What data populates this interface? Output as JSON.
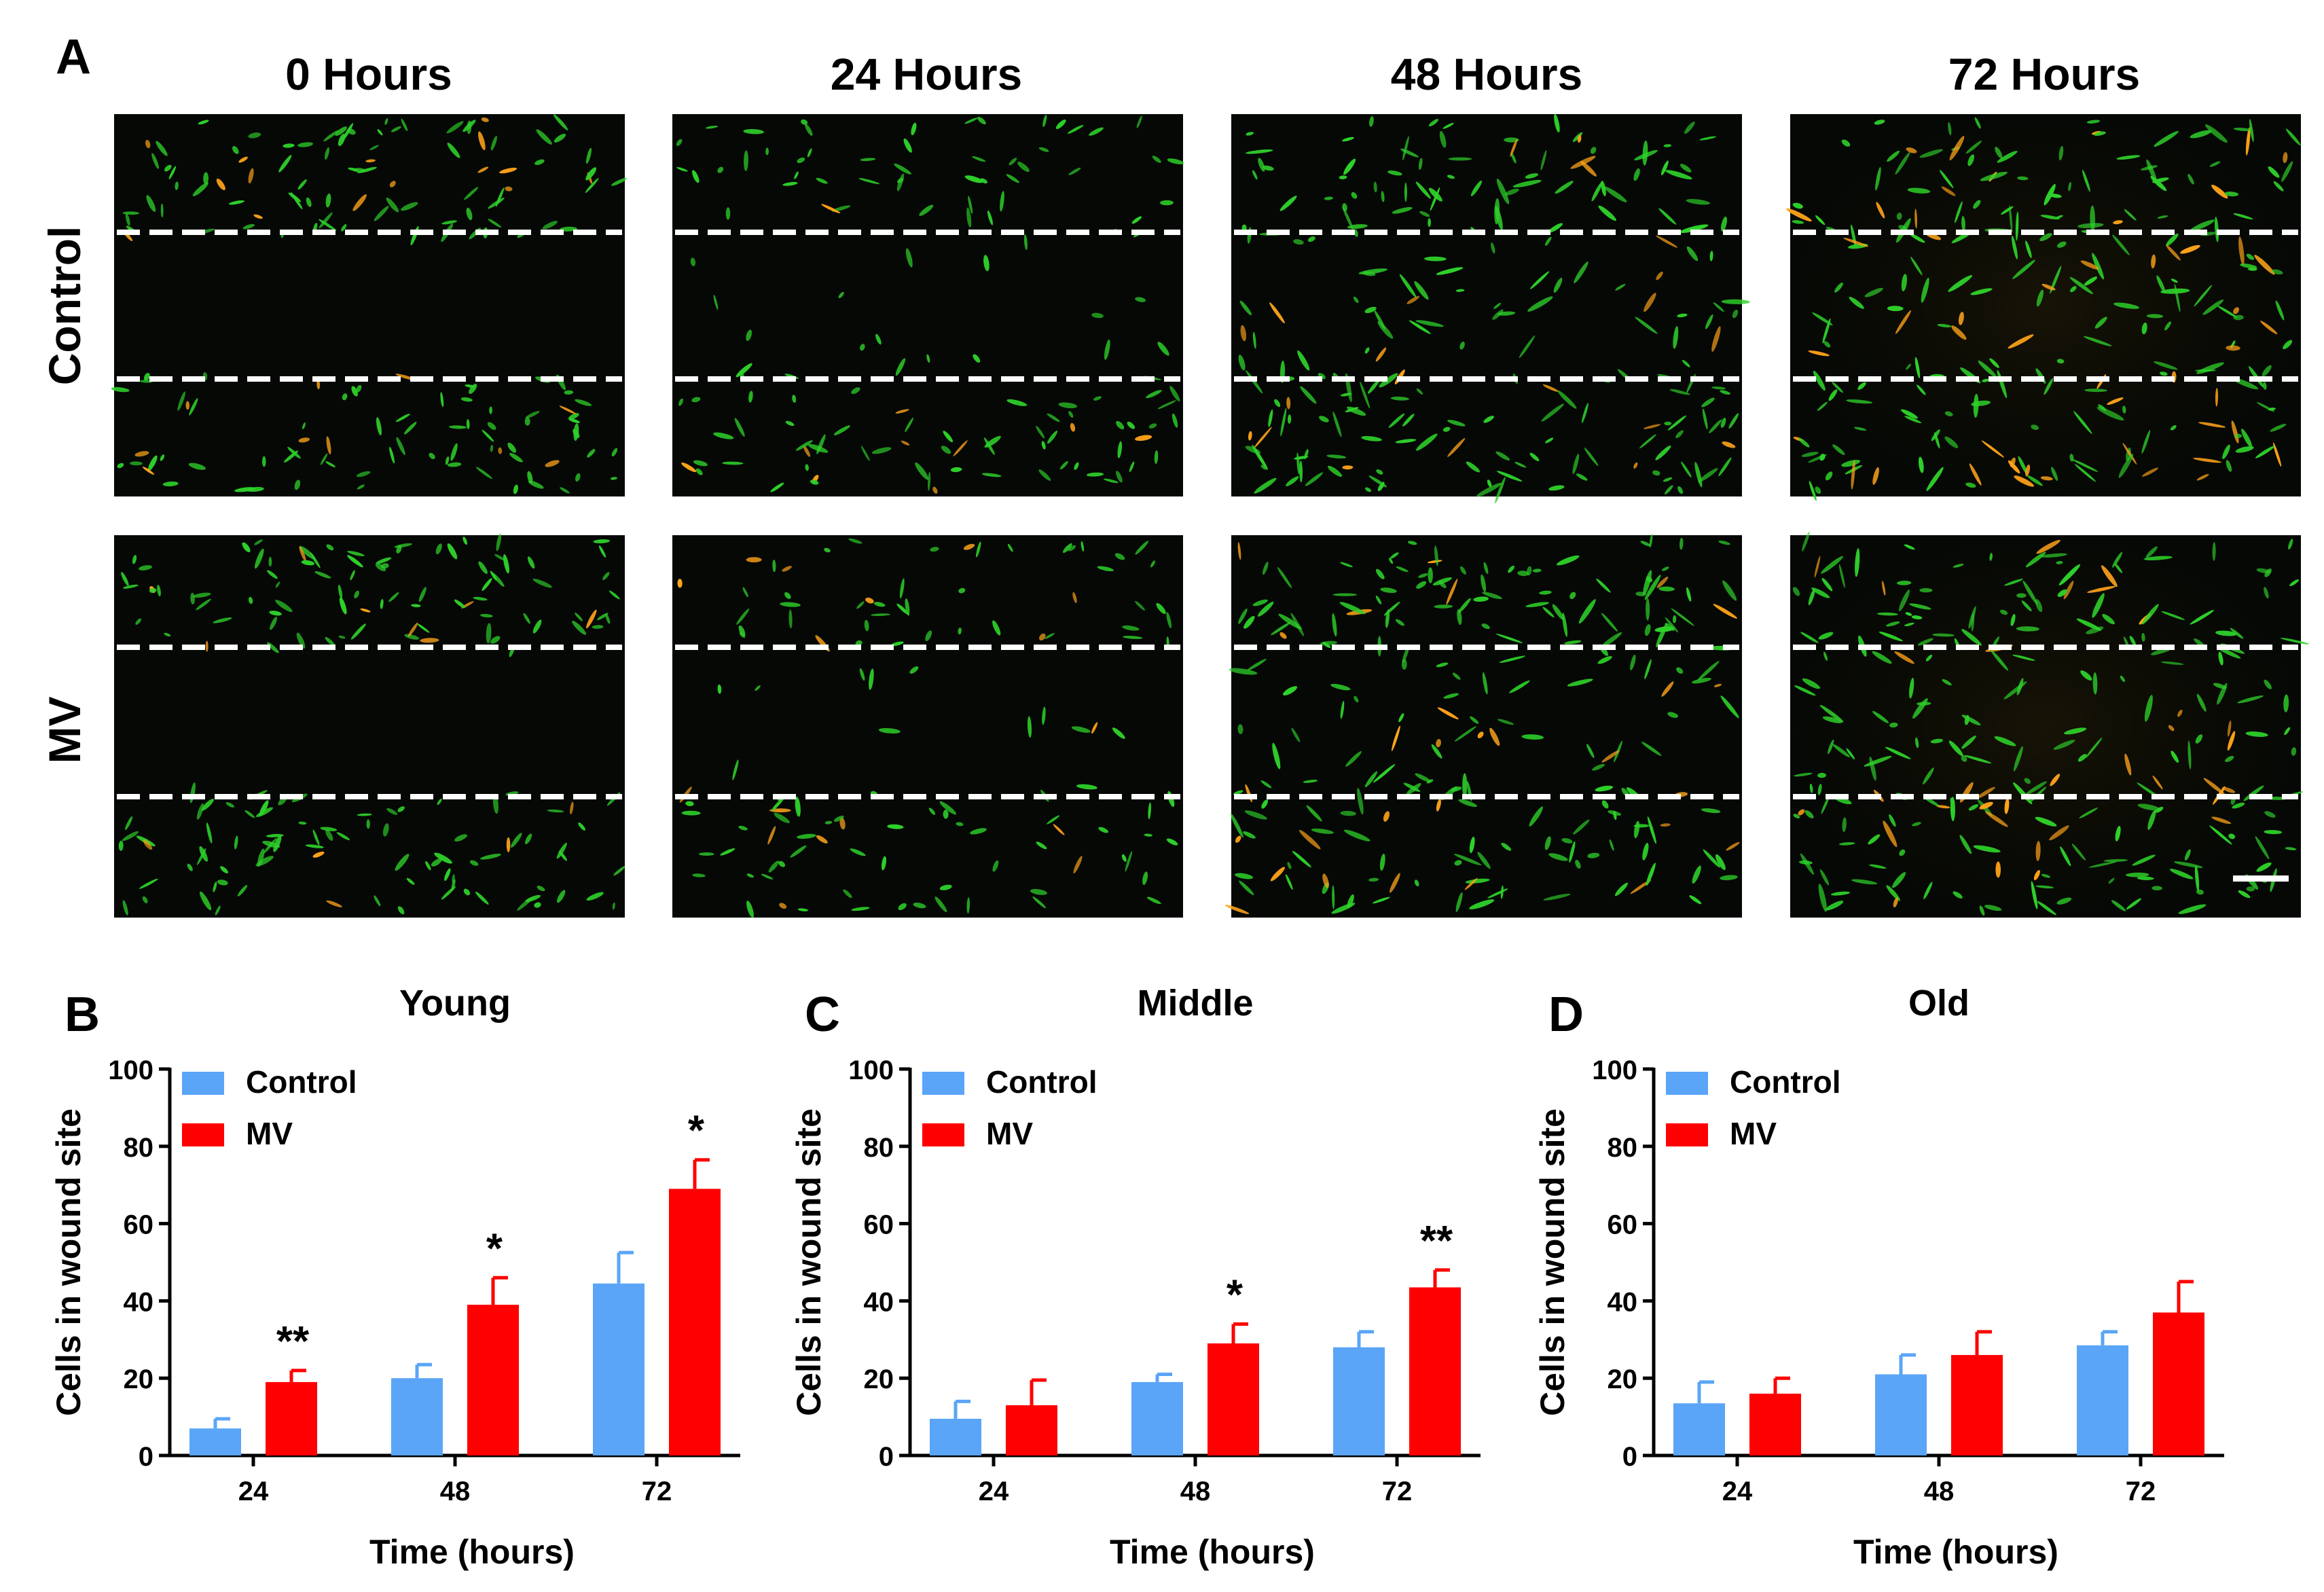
{
  "panel_a": {
    "letter": "A",
    "columns": [
      "0 Hours",
      "24 Hours",
      "48 Hours",
      "72 Hours"
    ],
    "rows": [
      "Control",
      "MV"
    ]
  },
  "colors": {
    "control": "#5aa5f7",
    "mv": "#ff0000",
    "cell_green": "#2ed12a",
    "cell_orange": "#ffa31a",
    "micro_bg": "#050805"
  },
  "chart_data": [
    {
      "type": "bar",
      "letter": "B",
      "title": "Young",
      "xlabel": "Time (hours)",
      "ylabel": "Cells in wound site",
      "categories": [
        "24",
        "48",
        "72"
      ],
      "ylim": [
        0,
        100
      ],
      "yticks": [
        "0",
        "20",
        "40",
        "60",
        "80",
        "100"
      ],
      "legend": "top-left",
      "series": [
        {
          "name": "Control",
          "values": [
            7,
            20,
            44.5
          ],
          "errors": [
            2.5,
            3.5,
            8
          ]
        },
        {
          "name": "MV",
          "values": [
            19,
            39,
            69
          ],
          "errors": [
            3,
            7,
            7.5
          ]
        }
      ],
      "annotations": [
        "**",
        "*",
        "*"
      ]
    },
    {
      "type": "bar",
      "letter": "C",
      "title": "Middle",
      "xlabel": "Time (hours)",
      "ylabel": "Cells in wound site",
      "categories": [
        "24",
        "48",
        "72"
      ],
      "ylim": [
        0,
        100
      ],
      "yticks": [
        "0",
        "20",
        "40",
        "60",
        "80",
        "100"
      ],
      "legend": "top-left",
      "series": [
        {
          "name": "Control",
          "values": [
            9.5,
            19,
            28
          ],
          "errors": [
            4.5,
            2,
            4
          ]
        },
        {
          "name": "MV",
          "values": [
            13,
            29,
            43.5
          ],
          "errors": [
            6.5,
            5,
            4.5
          ]
        }
      ],
      "annotations": [
        "",
        "*",
        "**"
      ]
    },
    {
      "type": "bar",
      "letter": "D",
      "title": "Old",
      "xlabel": "Time (hours)",
      "ylabel": "Cells in wound site",
      "categories": [
        "24",
        "48",
        "72"
      ],
      "ylim": [
        0,
        100
      ],
      "yticks": [
        "0",
        "20",
        "40",
        "60",
        "80",
        "100"
      ],
      "legend": "top-left",
      "series": [
        {
          "name": "Control",
          "values": [
            13.5,
            21,
            28.5
          ],
          "errors": [
            5.5,
            5,
            3.5
          ]
        },
        {
          "name": "MV",
          "values": [
            16,
            26,
            37
          ],
          "errors": [
            4,
            6,
            8
          ]
        }
      ],
      "annotations": [
        "",
        "",
        ""
      ]
    }
  ]
}
